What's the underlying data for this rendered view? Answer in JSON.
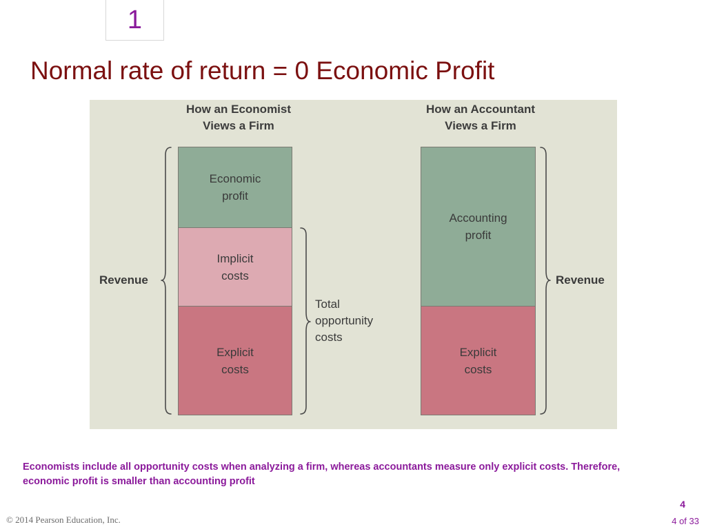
{
  "slide": {
    "section_number": "1",
    "title": "Normal rate of return = 0 Economic Profit",
    "caption": "Economists include all opportunity costs when analyzing a firm, whereas accountants measure only explicit costs. Therefore, economic profit is smaller than accounting profit",
    "copyright": "© 2014 Pearson Education, Inc.",
    "page_number": "4",
    "page_of": "4 of 33"
  },
  "figure": {
    "background_color": "#e2e3d5",
    "economist": {
      "heading": "How an Economist\nViews a Firm",
      "segments": [
        {
          "label": "Economic\nprofit",
          "color": "#8fac97"
        },
        {
          "label": "Implicit\ncosts",
          "color": "#ddaab2"
        },
        {
          "label": "Explicit\ncosts",
          "color": "#c97681"
        }
      ],
      "revenue_label": "Revenue",
      "total_label": "Total\nopportunity\ncosts"
    },
    "accountant": {
      "heading": "How an Accountant\nViews a Firm",
      "segments": [
        {
          "label": "Accounting\nprofit",
          "color": "#8fac97"
        },
        {
          "label": "Explicit\ncosts",
          "color": "#c97681"
        }
      ],
      "revenue_label": "Revenue"
    }
  }
}
